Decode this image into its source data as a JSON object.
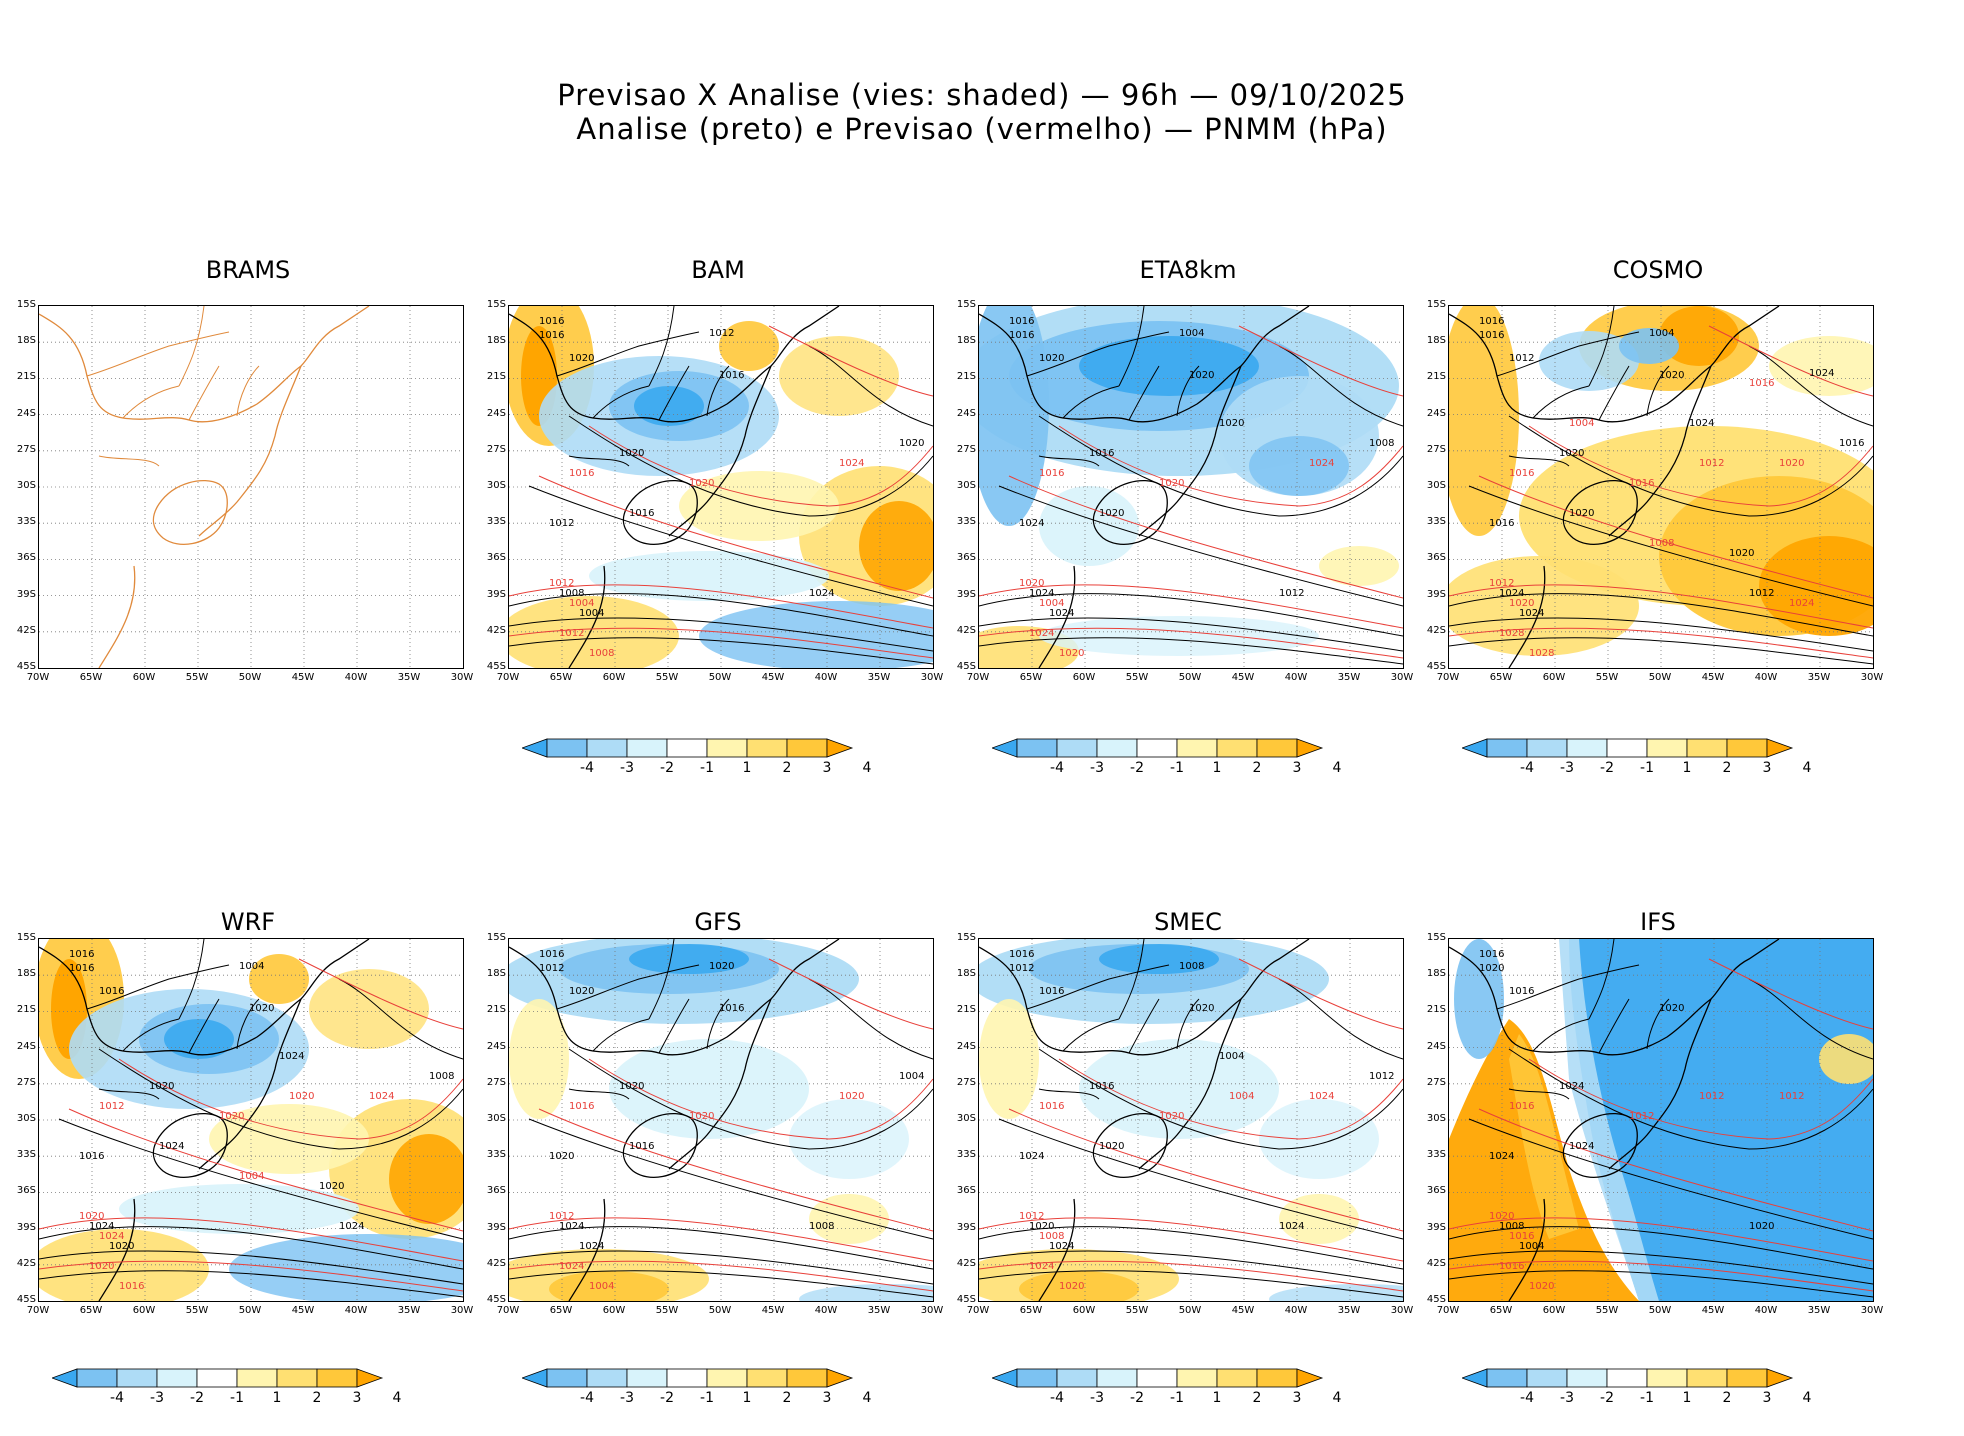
{
  "header": {
    "line1": "Previsao X Analise (vies: shaded) — 96h — 09/10/2025",
    "line2": "Analise (preto) e Previsao (vermelho) — PNMM (hPa)"
  },
  "axes": {
    "lat_labels": [
      "15S",
      "18S",
      "21S",
      "24S",
      "27S",
      "30S",
      "33S",
      "36S",
      "39S",
      "42S",
      "45S"
    ],
    "lon_labels": [
      "70W",
      "65W",
      "60W",
      "55W",
      "50W",
      "45W",
      "40W",
      "35W",
      "30W"
    ]
  },
  "colorbar": {
    "labels": [
      "-4",
      "-3",
      "-2",
      "-1",
      "1",
      "2",
      "3",
      "4"
    ],
    "colors": [
      "#3aa8f0",
      "#7cc2f2",
      "#aedcf6",
      "#d8f3fb",
      "#ffffff",
      "#fff5b0",
      "#ffe072",
      "#ffc83a",
      "#ffa500"
    ]
  },
  "panels": [
    {
      "id": "brams",
      "title": "BRAMS",
      "bias": "none",
      "contours": {
        "black": [],
        "red": []
      }
    },
    {
      "id": "bam",
      "title": "BAM",
      "bias": "mixed",
      "contours": {
        "black": [
          "1016",
          "1016",
          "1020",
          "1016",
          "1020",
          "1016",
          "1012",
          "1008",
          "1004",
          "1024",
          "1020",
          "1012"
        ],
        "red": [
          "1016",
          "1012",
          "1020",
          "1024",
          "1012",
          "1008",
          "1004"
        ]
      }
    },
    {
      "id": "eta8km",
      "title": "ETA8km",
      "bias": "negative",
      "contours": {
        "black": [
          "1016",
          "1016",
          "1020",
          "1020",
          "1016",
          "1020",
          "1024",
          "1024",
          "1024",
          "1012",
          "1008",
          "1004",
          "1020"
        ],
        "red": [
          "1016",
          "1020",
          "1020",
          "1024",
          "1024",
          "1020",
          "1004"
        ]
      }
    },
    {
      "id": "cosmo",
      "title": "COSMO",
      "bias": "positive",
      "contours": {
        "black": [
          "1016",
          "1016",
          "1012",
          "1020",
          "1020",
          "1020",
          "1016",
          "1024",
          "1024",
          "1012",
          "1016",
          "1004",
          "1024",
          "1020",
          "1024"
        ],
        "red": [
          "1016",
          "1012",
          "1016",
          "1020",
          "1028",
          "1028",
          "1020",
          "1012",
          "1008",
          "1016",
          "1024",
          "1004"
        ]
      }
    },
    {
      "id": "wrf",
      "title": "WRF",
      "bias": "mixed",
      "contours": {
        "black": [
          "1016",
          "1016",
          "1016",
          "1020",
          "1020",
          "1024",
          "1016",
          "1024",
          "1020",
          "1024",
          "1008",
          "1004",
          "1024",
          "1020"
        ],
        "red": [
          "1012",
          "1020",
          "1020",
          "1024",
          "1020",
          "1016",
          "1024",
          "1020",
          "1004"
        ]
      }
    },
    {
      "id": "gfs",
      "title": "GFS",
      "bias": "slight",
      "contours": {
        "black": [
          "1016",
          "1012",
          "1020",
          "1016",
          "1020",
          "1016",
          "1020",
          "1024",
          "1024",
          "1008",
          "1004",
          "1020"
        ],
        "red": [
          "1016",
          "1012",
          "1020",
          "1020",
          "1024",
          "1004"
        ]
      }
    },
    {
      "id": "smec",
      "title": "SMEC",
      "bias": "slight",
      "contours": {
        "black": [
          "1016",
          "1012",
          "1016",
          "1020",
          "1016",
          "1020",
          "1024",
          "1020",
          "1024",
          "1024",
          "1012",
          "1008",
          "1004"
        ],
        "red": [
          "1016",
          "1012",
          "1020",
          "1024",
          "1024",
          "1020",
          "1008",
          "1004"
        ]
      }
    },
    {
      "id": "ifs",
      "title": "IFS",
      "bias": "strong",
      "contours": {
        "black": [
          "1016",
          "1020",
          "1016",
          "1020",
          "1024",
          "1024",
          "1024",
          "1008",
          "1004",
          "1020"
        ],
        "red": [
          "1016",
          "1020",
          "1012",
          "1012",
          "1016",
          "1020",
          "1016",
          "1012"
        ]
      }
    }
  ]
}
